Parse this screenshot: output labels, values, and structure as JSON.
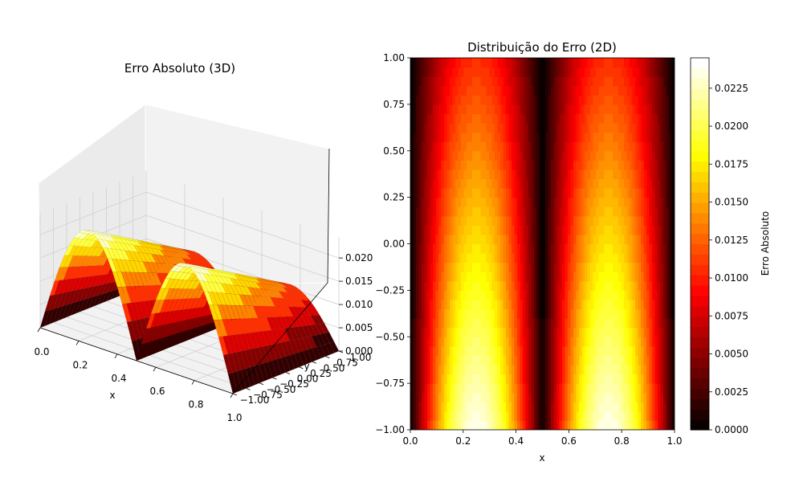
{
  "chart_data": [
    {
      "type": "surface",
      "title": "Erro Absoluto (3D)",
      "xlabel": "x",
      "ylabel": "y",
      "zlabel": "",
      "xlim": [
        0,
        1
      ],
      "ylim": [
        -1,
        1
      ],
      "zlim": [
        0,
        0.0245
      ],
      "xticks": [
        "0.0",
        "0.2",
        "0.4",
        "0.6",
        "0.8",
        "1.0"
      ],
      "yticks": [
        "−1.00",
        "−0.75",
        "−0.50",
        "−0.25",
        "0.00",
        "0.25",
        "0.50",
        "0.75",
        "1.00"
      ],
      "zticks": [
        "0.000",
        "0.005",
        "0.010",
        "0.015",
        "0.020"
      ],
      "colormap": "hot",
      "grid": true
    },
    {
      "type": "heatmap",
      "title": "Distribuição do Erro (2D)",
      "xlabel": "x",
      "ylabel": "",
      "xlim": [
        0,
        1
      ],
      "ylim": [
        -1,
        1
      ],
      "xticks": [
        "0.0",
        "0.2",
        "0.4",
        "0.6",
        "0.8",
        "1.0"
      ],
      "yticks": [
        "−1.00",
        "−0.75",
        "−0.50",
        "−0.25",
        "0.00",
        "0.25",
        "0.50",
        "0.75",
        "1.00"
      ],
      "colormap": "hot",
      "colorbar": {
        "label": "Erro Absoluto",
        "range": [
          0,
          0.0245
        ],
        "ticks": [
          "0.0000",
          "0.0025",
          "0.0050",
          "0.0075",
          "0.0100",
          "0.0125",
          "0.0150",
          "0.0175",
          "0.0200",
          "0.0225"
        ]
      },
      "error_peak": 0.0245,
      "error_peak_x": [
        0.25,
        0.75
      ],
      "error_zero_x": [
        0,
        0.5,
        1
      ]
    }
  ]
}
